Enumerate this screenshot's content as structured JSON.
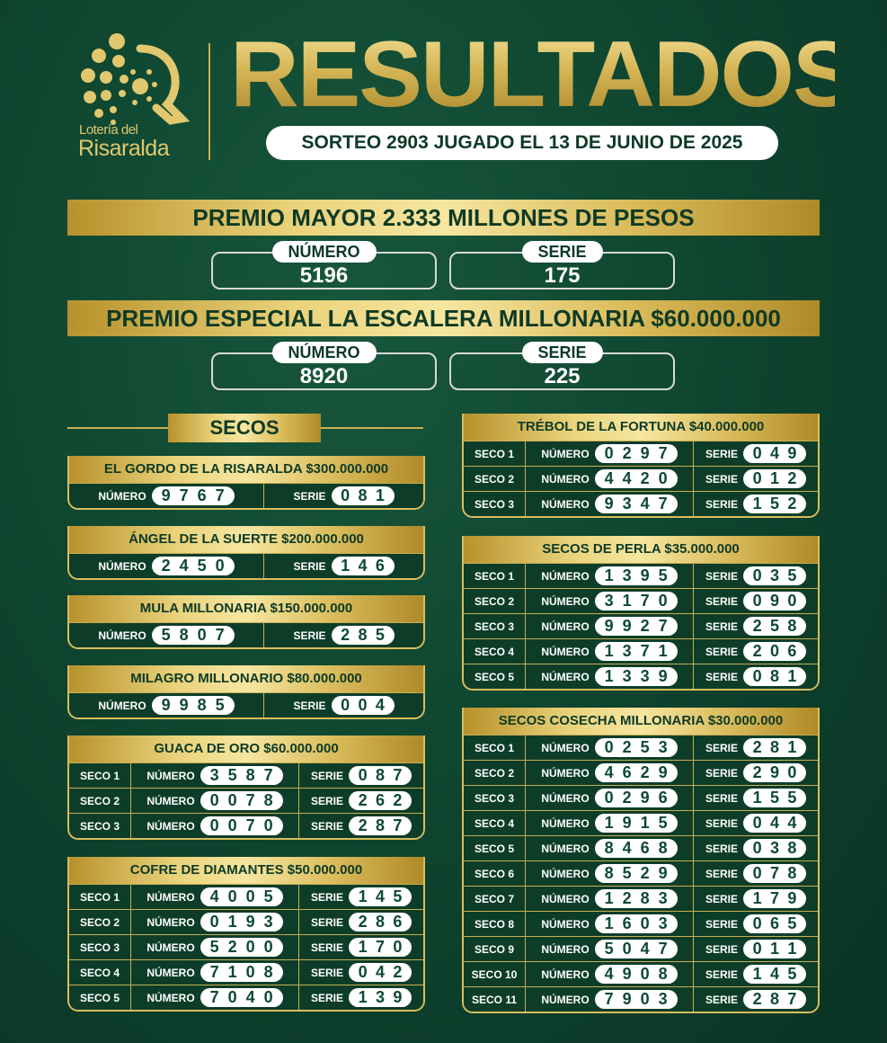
{
  "brand": {
    "line1": "Lotería del",
    "line2": "Risaralda"
  },
  "title": "RESULTADOS",
  "sorteo": "SORTEO 2903 JUGADO EL 13 DE JUNIO DE 2025",
  "labels": {
    "numero": "NÚMERO",
    "serie": "SERIE",
    "secos": "SECOS"
  },
  "colors": {
    "background": "#0f4630",
    "gold": "#e9d27a",
    "text_dark": "#0d3a26"
  },
  "premio_mayor": {
    "title": "PREMIO MAYOR 2.333 MILLONES DE PESOS",
    "numero": "5196",
    "serie": "175"
  },
  "premio_especial": {
    "title": "PREMIO ESPECIAL LA ESCALERA MILLONARIA $60.000.000",
    "numero": "8920",
    "serie": "225"
  },
  "secos_left": [
    {
      "title": "EL GORDO DE LA RISARALDA $300.000.000",
      "rows": [
        {
          "numero": "9767",
          "serie": "081"
        }
      ]
    },
    {
      "title": "ÁNGEL DE LA SUERTE $200.000.000",
      "rows": [
        {
          "numero": "2450",
          "serie": "146"
        }
      ]
    },
    {
      "title": "MULA MILLONARIA $150.000.000",
      "rows": [
        {
          "numero": "5807",
          "serie": "285"
        }
      ]
    },
    {
      "title": "MILAGRO MILLONARIO $80.000.000",
      "rows": [
        {
          "numero": "9985",
          "serie": "004"
        }
      ]
    },
    {
      "title": "GUACA DE ORO $60.000.000",
      "rows": [
        {
          "seco": "SECO 1",
          "numero": "3587",
          "serie": "087"
        },
        {
          "seco": "SECO 2",
          "numero": "0078",
          "serie": "262"
        },
        {
          "seco": "SECO 3",
          "numero": "0070",
          "serie": "287"
        }
      ]
    },
    {
      "title": "COFRE DE DIAMANTES $50.000.000",
      "rows": [
        {
          "seco": "SECO 1",
          "numero": "4005",
          "serie": "145"
        },
        {
          "seco": "SECO 2",
          "numero": "0193",
          "serie": "286"
        },
        {
          "seco": "SECO 3",
          "numero": "5200",
          "serie": "170"
        },
        {
          "seco": "SECO 4",
          "numero": "7108",
          "serie": "042"
        },
        {
          "seco": "SECO 5",
          "numero": "7040",
          "serie": "139"
        }
      ]
    }
  ],
  "secos_right": [
    {
      "title": "TRÉBOL DE LA FORTUNA $40.000.000",
      "rows": [
        {
          "seco": "SECO 1",
          "numero": "0297",
          "serie": "049"
        },
        {
          "seco": "SECO 2",
          "numero": "4420",
          "serie": "012"
        },
        {
          "seco": "SECO 3",
          "numero": "9347",
          "serie": "152"
        }
      ]
    },
    {
      "title": "SECOS DE PERLA $35.000.000",
      "rows": [
        {
          "seco": "SECO 1",
          "numero": "1395",
          "serie": "035"
        },
        {
          "seco": "SECO 2",
          "numero": "3170",
          "serie": "090"
        },
        {
          "seco": "SECO 3",
          "numero": "9927",
          "serie": "258"
        },
        {
          "seco": "SECO 4",
          "numero": "1371",
          "serie": "206"
        },
        {
          "seco": "SECO 5",
          "numero": "1339",
          "serie": "081"
        }
      ]
    },
    {
      "title": "SECOS COSECHA MILLONARIA $30.000.000",
      "rows": [
        {
          "seco": "SECO 1",
          "numero": "0253",
          "serie": "281"
        },
        {
          "seco": "SECO 2",
          "numero": "4629",
          "serie": "290"
        },
        {
          "seco": "SECO 3",
          "numero": "0296",
          "serie": "155"
        },
        {
          "seco": "SECO 4",
          "numero": "1915",
          "serie": "044"
        },
        {
          "seco": "SECO 5",
          "numero": "8468",
          "serie": "038"
        },
        {
          "seco": "SECO 6",
          "numero": "8529",
          "serie": "078"
        },
        {
          "seco": "SECO 7",
          "numero": "1283",
          "serie": "179"
        },
        {
          "seco": "SECO 8",
          "numero": "1603",
          "serie": "065"
        },
        {
          "seco": "SECO 9",
          "numero": "5047",
          "serie": "011"
        },
        {
          "seco": "SECO 10",
          "numero": "4908",
          "serie": "145"
        },
        {
          "seco": "SECO 11",
          "numero": "7903",
          "serie": "287"
        }
      ]
    }
  ]
}
